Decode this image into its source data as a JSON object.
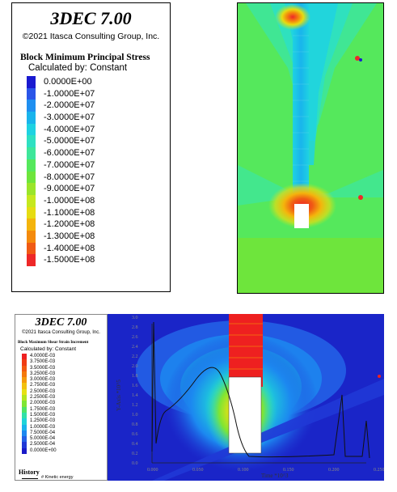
{
  "top_figure": {
    "legend": {
      "app_title": "3DEC 7.00",
      "copyright": "©2021 Itasca Consulting Group, Inc.",
      "plot_title": "Block  Minimum Principal Stress",
      "calculated_by": "Calculated by: Constant",
      "entries": [
        {
          "label": "0.0000E+00",
          "color": "#1a1ad0"
        },
        {
          "label": "-1.0000E+07",
          "color": "#2a55e8"
        },
        {
          "label": "-2.0000E+07",
          "color": "#1f8ff0"
        },
        {
          "label": "-3.0000E+07",
          "color": "#19b4ec"
        },
        {
          "label": "-4.0000E+07",
          "color": "#1ed2e2"
        },
        {
          "label": "-5.0000E+07",
          "color": "#2ee0c2"
        },
        {
          "label": "-6.0000E+07",
          "color": "#3ee69a"
        },
        {
          "label": "-7.0000E+07",
          "color": "#55e85c"
        },
        {
          "label": "-8.0000E+07",
          "color": "#6ee53c"
        },
        {
          "label": "-9.0000E+07",
          "color": "#9ae52a"
        },
        {
          "label": "-1.0000E+08",
          "color": "#c6e81e"
        },
        {
          "label": "-1.1000E+08",
          "color": "#e6dc12"
        },
        {
          "label": "-1.2000E+08",
          "color": "#f4b40c"
        },
        {
          "label": "-1.3000E+08",
          "color": "#f48a0c"
        },
        {
          "label": "-1.4000E+08",
          "color": "#f05a14"
        },
        {
          "label": "-1.5000E+08",
          "color": "#ee2828"
        }
      ]
    }
  },
  "bottom_figure": {
    "legend": {
      "app_title": "3DEC 7.00",
      "copyright": "©2021 Itasca Consulting Group, Inc.",
      "plot_title": "Block  Maximum Shear Strain Increment",
      "calculated_by": "Calculated by: Constant",
      "entries": [
        {
          "label": "4.0000E-03",
          "color": "#ee2020"
        },
        {
          "label": "3.7500E-03",
          "color": "#f03c14"
        },
        {
          "label": "3.5000E-03",
          "color": "#f25a10"
        },
        {
          "label": "3.2500E-03",
          "color": "#f4780c"
        },
        {
          "label": "3.0000E-03",
          "color": "#f49a0c"
        },
        {
          "label": "2.7500E-03",
          "color": "#f2c00e"
        },
        {
          "label": "2.5000E-03",
          "color": "#e6e014"
        },
        {
          "label": "2.2500E-03",
          "color": "#b4e61e"
        },
        {
          "label": "2.0000E-03",
          "color": "#7ee534"
        },
        {
          "label": "1.7500E-03",
          "color": "#4ee468"
        },
        {
          "label": "1.5000E-03",
          "color": "#30e0a8"
        },
        {
          "label": "1.2500E-03",
          "color": "#1ed4d8"
        },
        {
          "label": "1.0000E-03",
          "color": "#18b4ec"
        },
        {
          "label": "7.5000E-04",
          "color": "#1c88f0"
        },
        {
          "label": "5.0000E-04",
          "color": "#2460e6"
        },
        {
          "label": "2.5000E-04",
          "color": "#2038d6"
        },
        {
          "label": "0.0000E+00",
          "color": "#1a1ac8"
        }
      ],
      "history_title": "History",
      "history_entry": "# Kinetic energy"
    },
    "plot": {
      "yticks": [
        "3.0",
        "2.8",
        "2.6",
        "2.4",
        "2.2",
        "2.0",
        "1.8",
        "1.6",
        "1.4",
        "1.2",
        "1.0",
        "0.8",
        "0.6",
        "0.4",
        "0.2",
        "0.0"
      ],
      "xticks": [
        "0.000",
        "0.050",
        "0.100",
        "0.150",
        "0.200",
        "0.250"
      ],
      "ylabel": "Y-Axis *10^5",
      "xlabel": "Time *10^3"
    }
  }
}
